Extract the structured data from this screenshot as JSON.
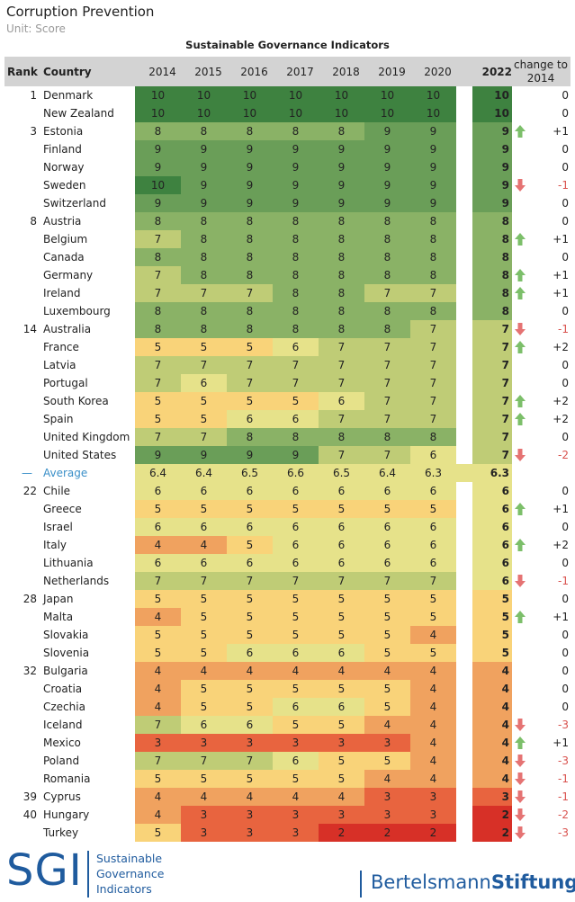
{
  "title": "Corruption Prevention",
  "unit": "Unit: Score",
  "chart_data": {
    "type": "table",
    "title": "Sustainable Governance Indicators",
    "columns": {
      "rank": "Rank",
      "country": "Country",
      "years": [
        "2014",
        "2015",
        "2016",
        "2017",
        "2018",
        "2019",
        "2020",
        "2022"
      ],
      "change_line1": "change to",
      "change_line2": "2014"
    },
    "rows": [
      {
        "rank": "1",
        "country": "Denmark",
        "values": [
          10,
          10,
          10,
          10,
          10,
          10,
          10,
          10
        ],
        "change": "0",
        "trend": "flat"
      },
      {
        "rank": "",
        "country": "New Zealand",
        "values": [
          10,
          10,
          10,
          10,
          10,
          10,
          10,
          10
        ],
        "change": "0",
        "trend": "flat"
      },
      {
        "rank": "3",
        "country": "Estonia",
        "values": [
          8,
          8,
          8,
          8,
          8,
          9,
          9,
          9
        ],
        "change": "+1",
        "trend": "up"
      },
      {
        "rank": "",
        "country": "Finland",
        "values": [
          9,
          9,
          9,
          9,
          9,
          9,
          9,
          9
        ],
        "change": "0",
        "trend": "flat"
      },
      {
        "rank": "",
        "country": "Norway",
        "values": [
          9,
          9,
          9,
          9,
          9,
          9,
          9,
          9
        ],
        "change": "0",
        "trend": "flat"
      },
      {
        "rank": "",
        "country": "Sweden",
        "values": [
          10,
          9,
          9,
          9,
          9,
          9,
          9,
          9
        ],
        "change": "-1",
        "trend": "down"
      },
      {
        "rank": "",
        "country": "Switzerland",
        "values": [
          9,
          9,
          9,
          9,
          9,
          9,
          9,
          9
        ],
        "change": "0",
        "trend": "flat"
      },
      {
        "rank": "8",
        "country": "Austria",
        "values": [
          8,
          8,
          8,
          8,
          8,
          8,
          8,
          8
        ],
        "change": "0",
        "trend": "flat"
      },
      {
        "rank": "",
        "country": "Belgium",
        "values": [
          7,
          8,
          8,
          8,
          8,
          8,
          8,
          8
        ],
        "change": "+1",
        "trend": "up"
      },
      {
        "rank": "",
        "country": "Canada",
        "values": [
          8,
          8,
          8,
          8,
          8,
          8,
          8,
          8
        ],
        "change": "0",
        "trend": "flat"
      },
      {
        "rank": "",
        "country": "Germany",
        "values": [
          7,
          8,
          8,
          8,
          8,
          8,
          8,
          8
        ],
        "change": "+1",
        "trend": "up"
      },
      {
        "rank": "",
        "country": "Ireland",
        "values": [
          7,
          7,
          7,
          8,
          8,
          7,
          7,
          8
        ],
        "change": "+1",
        "trend": "up"
      },
      {
        "rank": "",
        "country": "Luxembourg",
        "values": [
          8,
          8,
          8,
          8,
          8,
          8,
          8,
          8
        ],
        "change": "0",
        "trend": "flat"
      },
      {
        "rank": "14",
        "country": "Australia",
        "values": [
          8,
          8,
          8,
          8,
          8,
          8,
          7,
          7
        ],
        "change": "-1",
        "trend": "down"
      },
      {
        "rank": "",
        "country": "France",
        "values": [
          5,
          5,
          5,
          6,
          7,
          7,
          7,
          7
        ],
        "change": "+2",
        "trend": "up"
      },
      {
        "rank": "",
        "country": "Latvia",
        "values": [
          7,
          7,
          7,
          7,
          7,
          7,
          7,
          7
        ],
        "change": "0",
        "trend": "flat"
      },
      {
        "rank": "",
        "country": "Portugal",
        "values": [
          7,
          6,
          7,
          7,
          7,
          7,
          7,
          7
        ],
        "change": "0",
        "trend": "flat"
      },
      {
        "rank": "",
        "country": "South Korea",
        "values": [
          5,
          5,
          5,
          5,
          6,
          7,
          7,
          7
        ],
        "change": "+2",
        "trend": "up"
      },
      {
        "rank": "",
        "country": "Spain",
        "values": [
          5,
          5,
          6,
          6,
          7,
          7,
          7,
          7
        ],
        "change": "+2",
        "trend": "up"
      },
      {
        "rank": "",
        "country": "United Kingdom",
        "values": [
          7,
          7,
          8,
          8,
          8,
          8,
          8,
          7
        ],
        "change": "0",
        "trend": "flat"
      },
      {
        "rank": "",
        "country": "United States",
        "values": [
          9,
          9,
          9,
          9,
          7,
          7,
          6,
          7
        ],
        "change": "-2",
        "trend": "down"
      },
      {
        "rank": "—",
        "country": "Average",
        "values": [
          "6.4",
          "6.4",
          "6.5",
          "6.6",
          "6.5",
          "6.4",
          "6.3",
          "6.3"
        ],
        "change": "",
        "trend": "none",
        "is_average": true
      },
      {
        "rank": "22",
        "country": "Chile",
        "values": [
          6,
          6,
          6,
          6,
          6,
          6,
          6,
          6
        ],
        "change": "0",
        "trend": "flat"
      },
      {
        "rank": "",
        "country": "Greece",
        "values": [
          5,
          5,
          5,
          5,
          5,
          5,
          5,
          6
        ],
        "change": "+1",
        "trend": "up"
      },
      {
        "rank": "",
        "country": "Israel",
        "values": [
          6,
          6,
          6,
          6,
          6,
          6,
          6,
          6
        ],
        "change": "0",
        "trend": "flat"
      },
      {
        "rank": "",
        "country": "Italy",
        "values": [
          4,
          4,
          5,
          6,
          6,
          6,
          6,
          6
        ],
        "change": "+2",
        "trend": "up"
      },
      {
        "rank": "",
        "country": "Lithuania",
        "values": [
          6,
          6,
          6,
          6,
          6,
          6,
          6,
          6
        ],
        "change": "0",
        "trend": "flat"
      },
      {
        "rank": "",
        "country": "Netherlands",
        "values": [
          7,
          7,
          7,
          7,
          7,
          7,
          7,
          6
        ],
        "change": "-1",
        "trend": "down"
      },
      {
        "rank": "28",
        "country": "Japan",
        "values": [
          5,
          5,
          5,
          5,
          5,
          5,
          5,
          5
        ],
        "change": "0",
        "trend": "flat"
      },
      {
        "rank": "",
        "country": "Malta",
        "values": [
          4,
          5,
          5,
          5,
          5,
          5,
          5,
          5
        ],
        "change": "+1",
        "trend": "up"
      },
      {
        "rank": "",
        "country": "Slovakia",
        "values": [
          5,
          5,
          5,
          5,
          5,
          5,
          4,
          5
        ],
        "change": "0",
        "trend": "flat"
      },
      {
        "rank": "",
        "country": "Slovenia",
        "values": [
          5,
          5,
          6,
          6,
          6,
          5,
          5,
          5
        ],
        "change": "0",
        "trend": "flat"
      },
      {
        "rank": "32",
        "country": "Bulgaria",
        "values": [
          4,
          4,
          4,
          4,
          4,
          4,
          4,
          4
        ],
        "change": "0",
        "trend": "flat"
      },
      {
        "rank": "",
        "country": "Croatia",
        "values": [
          4,
          5,
          5,
          5,
          5,
          5,
          4,
          4
        ],
        "change": "0",
        "trend": "flat"
      },
      {
        "rank": "",
        "country": "Czechia",
        "values": [
          4,
          5,
          5,
          6,
          6,
          5,
          4,
          4
        ],
        "change": "0",
        "trend": "flat"
      },
      {
        "rank": "",
        "country": "Iceland",
        "values": [
          7,
          6,
          6,
          5,
          5,
          4,
          4,
          4
        ],
        "change": "-3",
        "trend": "down"
      },
      {
        "rank": "",
        "country": "Mexico",
        "values": [
          3,
          3,
          3,
          3,
          3,
          3,
          4,
          4
        ],
        "change": "+1",
        "trend": "up"
      },
      {
        "rank": "",
        "country": "Poland",
        "values": [
          7,
          7,
          7,
          6,
          5,
          5,
          4,
          4
        ],
        "change": "-3",
        "trend": "down"
      },
      {
        "rank": "",
        "country": "Romania",
        "values": [
          5,
          5,
          5,
          5,
          5,
          4,
          4,
          4
        ],
        "change": "-1",
        "trend": "down"
      },
      {
        "rank": "39",
        "country": "Cyprus",
        "values": [
          4,
          4,
          4,
          4,
          4,
          3,
          3,
          3
        ],
        "change": "-1",
        "trend": "down"
      },
      {
        "rank": "40",
        "country": "Hungary",
        "values": [
          4,
          3,
          3,
          3,
          3,
          3,
          3,
          2
        ],
        "change": "-2",
        "trend": "down"
      },
      {
        "rank": "",
        "country": "Turkey",
        "values": [
          5,
          3,
          3,
          3,
          2,
          2,
          2,
          2
        ],
        "change": "-3",
        "trend": "down"
      }
    ],
    "color_scale": {
      "2": "#d73027",
      "3": "#e8643f",
      "4": "#f0a25f",
      "5": "#f9d379",
      "6": "#e6e28a",
      "7": "#bfcc76",
      "8": "#8ab266",
      "9": "#6a9e58",
      "10": "#3e8240",
      "up_arrow": "#7cbf6a",
      "down_arrow": "#e57373"
    }
  },
  "footer": {
    "sgi_letters": "SGI",
    "sgi_line1": "Sustainable",
    "sgi_line2": "Governance",
    "sgi_line3": "Indicators",
    "bst_regular": "Bertelsmann",
    "bst_bold": "Stiftung"
  }
}
